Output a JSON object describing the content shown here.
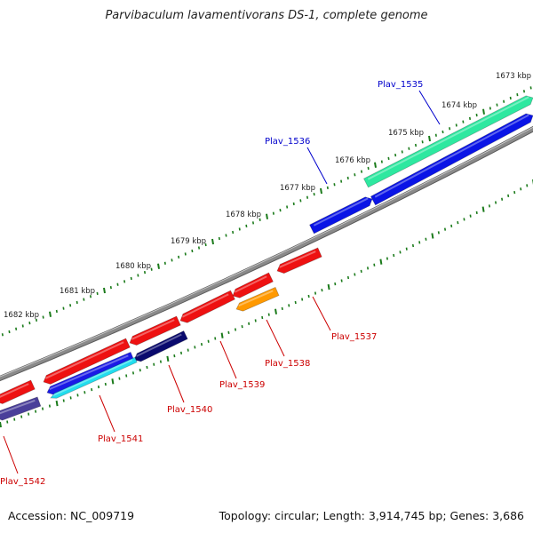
{
  "title": "Parvibaculum lavamentivorans DS-1, complete genome",
  "footer": {
    "accession": "Accession: NC_009719",
    "summary": "Topology: circular; Length: 3,914,745 bp; Genes: 3,686"
  },
  "colors": {
    "backbone": "#8a8a8a",
    "ticks": "#1a7a1a",
    "label_forward": "#0000cc",
    "label_reverse": "#cc0000"
  },
  "scale_labels": [
    "1673 kbp",
    "1674 kbp",
    "1675 kbp",
    "1676 kbp",
    "1677 kbp",
    "1678 kbp",
    "1679 kbp",
    "1680 kbp",
    "1681 kbp",
    "1682 kbp"
  ],
  "genes": [
    {
      "label": "Plav_1535",
      "strand": "forward",
      "color": "#2ee8a0"
    },
    {
      "label": "Plav_1536",
      "strand": "forward",
      "color": "#0a14e6"
    },
    {
      "label": "Plav_1537",
      "strand": "reverse",
      "color": "#ee1111"
    },
    {
      "label": "Plav_1538",
      "strand": "reverse",
      "color": "#ff9900"
    },
    {
      "label": "Plav_1539",
      "strand": "reverse",
      "color": "#ee1111"
    },
    {
      "label": "Plav_1540",
      "strand": "reverse",
      "color": "#0a0a6e"
    },
    {
      "label": "Plav_1541",
      "strand": "reverse",
      "color": "#22ddee"
    },
    {
      "label": "Plav_1542",
      "strand": "reverse",
      "color": "#ee1111"
    }
  ],
  "extra_features": [
    {
      "name": "gene-1541-blue",
      "color": "#1a1ae6"
    },
    {
      "name": "gene-1540-red",
      "color": "#ee1111"
    },
    {
      "name": "gene-1542-purple",
      "color": "#4a3f9a"
    }
  ]
}
